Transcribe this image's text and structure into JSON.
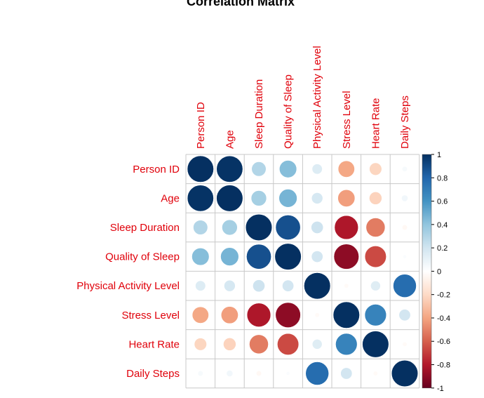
{
  "chart_data": {
    "type": "heatmap",
    "title": "Correlation Matrix",
    "variables": [
      "Person ID",
      "Age",
      "Sleep Duration",
      "Quality of Sleep",
      "Physical Activity Level",
      "Stress Level",
      "Heart Rate",
      "Daily Steps"
    ],
    "matrix": [
      [
        1.0,
        0.99,
        0.3,
        0.43,
        0.15,
        -0.39,
        -0.22,
        0.04
      ],
      [
        0.99,
        1.0,
        0.34,
        0.47,
        0.18,
        -0.42,
        -0.23,
        0.06
      ],
      [
        0.3,
        0.34,
        1.0,
        0.88,
        0.21,
        -0.81,
        -0.52,
        -0.04
      ],
      [
        0.43,
        0.47,
        0.88,
        1.0,
        0.19,
        -0.9,
        -0.66,
        0.02
      ],
      [
        0.15,
        0.18,
        0.21,
        0.19,
        1.0,
        -0.03,
        0.14,
        0.77
      ],
      [
        -0.39,
        -0.42,
        -0.81,
        -0.9,
        -0.03,
        1.0,
        0.67,
        0.19
      ],
      [
        -0.22,
        -0.23,
        -0.52,
        -0.66,
        0.14,
        0.67,
        1.0,
        -0.03
      ],
      [
        0.04,
        0.06,
        -0.04,
        0.02,
        0.77,
        0.19,
        -0.03,
        1.0
      ]
    ],
    "method": "circle",
    "label_color": "#e0000a",
    "color_scale": {
      "min": -1,
      "max": 1,
      "colors": [
        "#67001f",
        "#b2182b",
        "#d6604d",
        "#f4a582",
        "#fddbc7",
        "#ffffff",
        "#d1e5f0",
        "#92c5de",
        "#4393c3",
        "#2166ac",
        "#053061"
      ],
      "ticks": [
        "-1",
        "-0.8",
        "-0.6",
        "-0.4",
        "-0.2",
        "0",
        "0.2",
        "0.4",
        "0.6",
        "0.8",
        "1"
      ]
    },
    "grid": true,
    "legend": "right"
  }
}
